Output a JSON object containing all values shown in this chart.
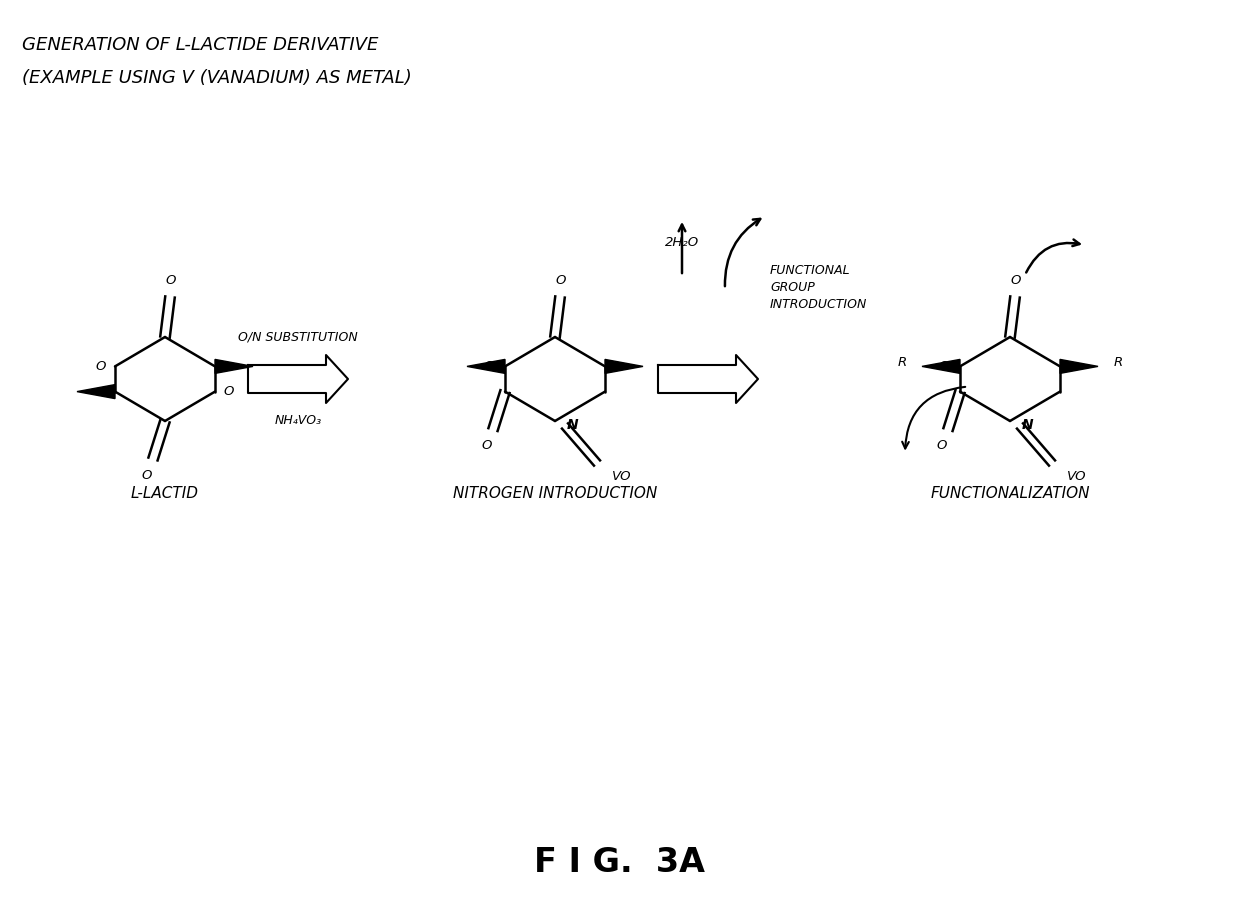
{
  "title_line1": "GENERATION OF L-LACTIDE DERIVATIVE",
  "title_line2": "(EXAMPLE USING V (VANADIUM) AS METAL)",
  "fig_label": "F I G.  3A",
  "label1": "L-LACTID",
  "label2": "NITROGEN INTRODUCTION",
  "label3": "FUNCTIONALIZATION",
  "arrow1_label_top": "O/N SUBSTITUTION",
  "arrow1_label_bottom": "NH₄VO₃",
  "arrow2_label_top": "FUNCTIONAL\nGROUP\nINTRODUCTION",
  "water_label": "2H₂O",
  "background_color": "#ffffff",
  "text_color": "#000000",
  "line_color": "#000000",
  "title_fontsize": 13,
  "label_fontsize": 11,
  "small_fontsize": 9
}
